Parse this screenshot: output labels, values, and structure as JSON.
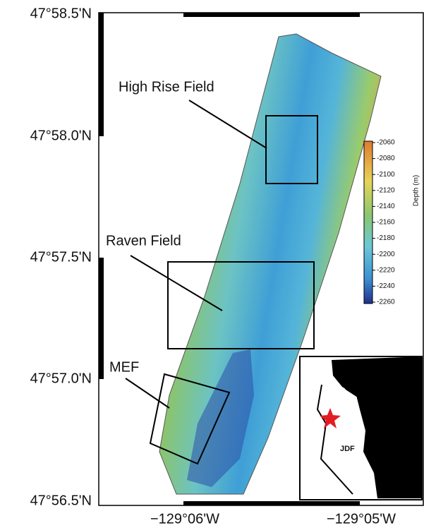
{
  "axes": {
    "y_labels": [
      "47°58.5'N",
      "47°58.0'N",
      "47°57.5'N",
      "47°57.0'N",
      "47°56.5'N"
    ],
    "x_labels": [
      "−129°06'W",
      "−129°05'W"
    ]
  },
  "fields": [
    "High Rise Field",
    "Raven Field",
    "MEF"
  ],
  "colorbar": {
    "label": "Depth (m)",
    "lim": [
      -2260,
      -2060
    ],
    "ticks": [
      -2060,
      -2080,
      -2100,
      -2120,
      -2140,
      -2160,
      -2180,
      -2200,
      -2220,
      -2240,
      -2260
    ]
  },
  "inset": {
    "label": "JDF"
  }
}
